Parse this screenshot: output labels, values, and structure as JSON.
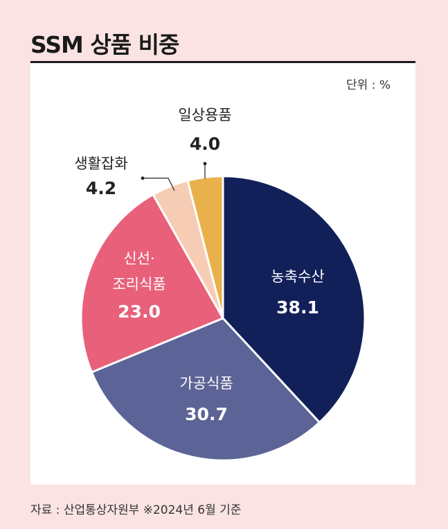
{
  "header": {
    "title": "SSM 상품 비중"
  },
  "unit_label": "단위 : %",
  "source_note": "자료 : 산업통상자원부 ※2024년 6월 기준",
  "chart_data": {
    "type": "pie",
    "title": "SSM 상품 비중",
    "unit": "%",
    "slices": [
      {
        "label": "농축수산",
        "value": 38.1,
        "value_label": "38.1",
        "color": "#12205a"
      },
      {
        "label": "가공식품",
        "value": 30.7,
        "value_label": "30.7",
        "color": "#5c6396"
      },
      {
        "label": "신선·\n조리식품",
        "value": 23.0,
        "value_label": "23.0",
        "color": "#e8607a"
      },
      {
        "label": "생활잡화",
        "value": 4.2,
        "value_label": "4.2",
        "color": "#f6cdb4"
      },
      {
        "label": "일상용품",
        "value": 4.0,
        "value_label": "4.0",
        "color": "#e9b14c"
      }
    ]
  }
}
